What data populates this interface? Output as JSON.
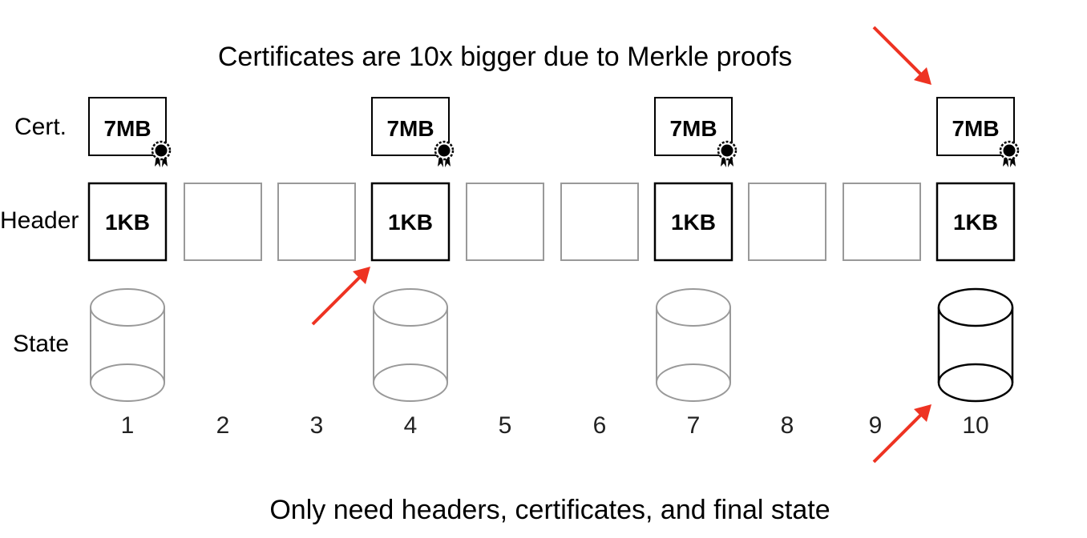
{
  "top_caption": "Certificates are 10x bigger due to Merkle proofs",
  "bottom_caption": "Only need headers, certificates, and final state",
  "row_labels": {
    "cert": "Cert.",
    "header": "Header",
    "state": "State"
  },
  "blocks": [
    {
      "number": "1",
      "cert": "7MB",
      "header": "1KB",
      "state": "past"
    },
    {
      "number": "2",
      "cert": null,
      "header": null,
      "state": null
    },
    {
      "number": "3",
      "cert": null,
      "header": null,
      "state": null
    },
    {
      "number": "4",
      "cert": "7MB",
      "header": "1KB",
      "state": "past"
    },
    {
      "number": "5",
      "cert": null,
      "header": null,
      "state": null
    },
    {
      "number": "6",
      "cert": null,
      "header": null,
      "state": null
    },
    {
      "number": "7",
      "cert": "7MB",
      "header": "1KB",
      "state": "past"
    },
    {
      "number": "8",
      "cert": null,
      "header": null,
      "state": null
    },
    {
      "number": "9",
      "cert": null,
      "header": null,
      "state": null
    },
    {
      "number": "10",
      "cert": "7MB",
      "header": "1KB",
      "state": "final"
    }
  ],
  "colors": {
    "active": "#000000",
    "inactive": "#999999",
    "arrow": "#ee3322"
  }
}
